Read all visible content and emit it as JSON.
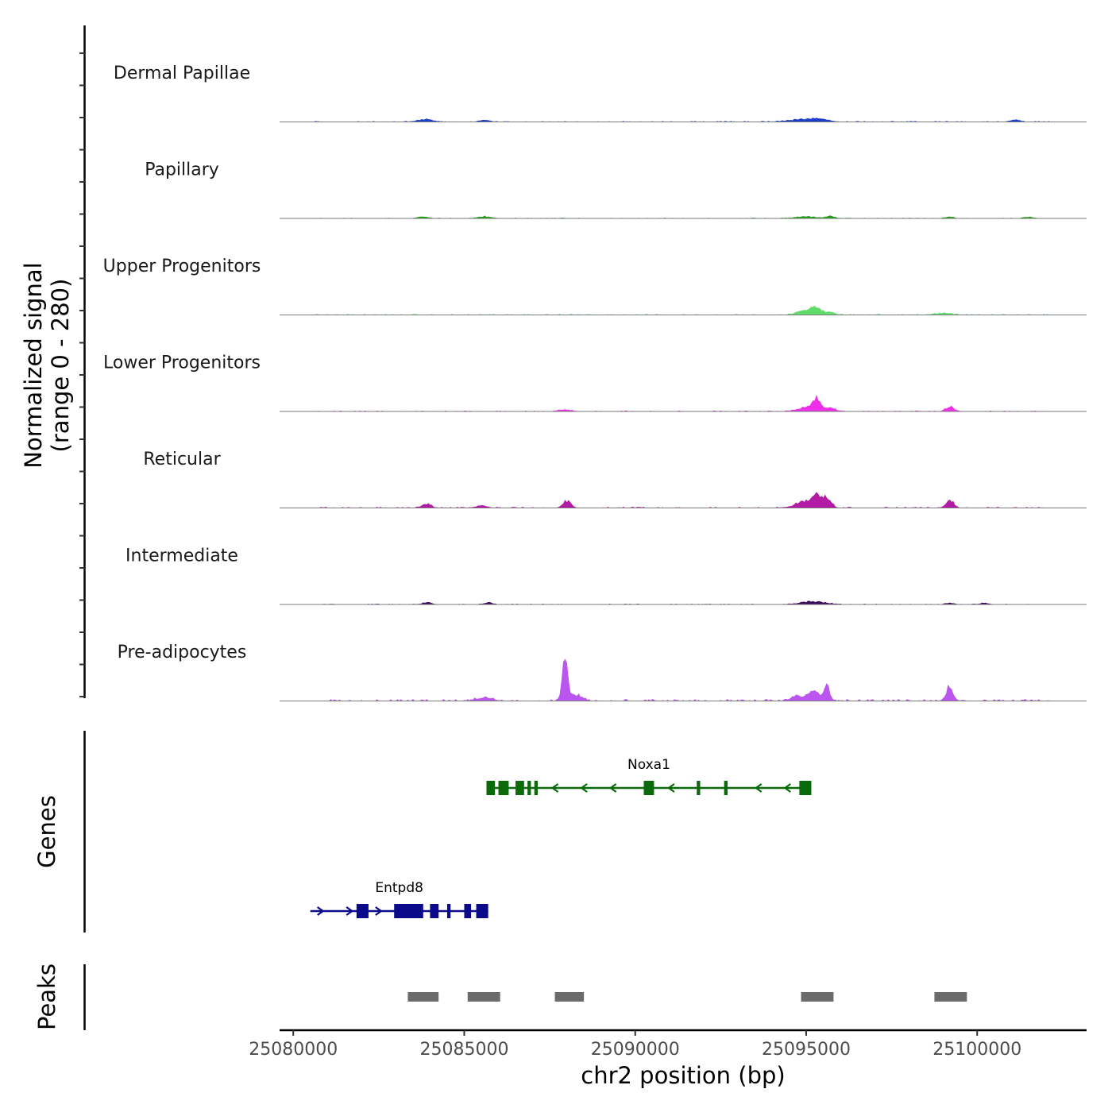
{
  "chart_data": {
    "type": "area",
    "chromosome": "chr2",
    "y_axis_title": "Normalized signal\n(range 0 - 280)",
    "y_range": [
      0,
      280
    ],
    "x_axis_title": "chr2 position (bp)",
    "xlim": [
      25079600,
      25103200
    ],
    "x_ticks": [
      25080000,
      25085000,
      25090000,
      25095000,
      25100000
    ],
    "x_tick_labels": [
      "25080000",
      "25085000",
      "25090000",
      "25095000",
      "25100000"
    ],
    "tracks": [
      {
        "name": "Dermal Papillae",
        "color": "#1a3dcc",
        "baseline_noise": 2,
        "peaks": [
          [
            25083850,
            7,
            220
          ],
          [
            25085600,
            5,
            140
          ],
          [
            25094900,
            7,
            400
          ],
          [
            25095400,
            6,
            250
          ],
          [
            25101100,
            5,
            140
          ]
        ]
      },
      {
        "name": "Papillary",
        "color": "#1f9e12",
        "baseline_noise": 1.5,
        "peaks": [
          [
            25083800,
            4,
            160
          ],
          [
            25085600,
            5,
            180
          ],
          [
            25095000,
            5,
            300
          ],
          [
            25095700,
            6,
            120
          ],
          [
            25099200,
            4,
            120
          ],
          [
            25101500,
            4,
            120
          ]
        ]
      },
      {
        "name": "Upper Progenitors",
        "color": "#5fdc6a",
        "baseline_noise": 2,
        "peaks": [
          [
            25094900,
            11,
            200
          ],
          [
            25095300,
            20,
            160
          ],
          [
            25095700,
            8,
            120
          ],
          [
            25099000,
            5,
            250
          ]
        ]
      },
      {
        "name": "Lower Progenitors",
        "color": "#f02ee8",
        "baseline_noise": 2,
        "peaks": [
          [
            25087950,
            5,
            180
          ],
          [
            25095000,
            12,
            250
          ],
          [
            25095300,
            33,
            110
          ],
          [
            25095700,
            10,
            160
          ],
          [
            25099200,
            14,
            110
          ]
        ]
      },
      {
        "name": "Reticular",
        "color": "#b31aa6",
        "baseline_noise": 2.5,
        "peaks": [
          [
            25083900,
            12,
            120
          ],
          [
            25085500,
            6,
            160
          ],
          [
            25088000,
            20,
            110
          ],
          [
            25095000,
            18,
            300
          ],
          [
            25095300,
            36,
            100
          ],
          [
            25095600,
            28,
            120
          ],
          [
            25099200,
            25,
            110
          ]
        ]
      },
      {
        "name": "Intermediate",
        "color": "#3a0a5a",
        "baseline_noise": 1.5,
        "peaks": [
          [
            25083900,
            6,
            120
          ],
          [
            25085700,
            5,
            120
          ],
          [
            25095200,
            8,
            350
          ],
          [
            25099200,
            4,
            120
          ],
          [
            25100200,
            4,
            120
          ]
        ]
      },
      {
        "name": "Pre-adipocytes",
        "color": "#bb55f0",
        "baseline_noise": 5,
        "peaks": [
          [
            25085600,
            10,
            200
          ],
          [
            25087950,
            108,
            85
          ],
          [
            25088300,
            18,
            150
          ],
          [
            25094700,
            14,
            150
          ],
          [
            25095200,
            30,
            160
          ],
          [
            25095600,
            42,
            90
          ],
          [
            25099200,
            40,
            100
          ]
        ]
      }
    ],
    "genes": [
      {
        "name": "Noxa1",
        "color": "#0a6a0a",
        "strand": "-",
        "start": 25085650,
        "end": 25095150,
        "exons": [
          [
            25085650,
            25085900
          ],
          [
            25086000,
            25086300
          ],
          [
            25086500,
            25086750
          ],
          [
            25086850,
            25086950
          ],
          [
            25087050,
            25087150
          ],
          [
            25090250,
            25090550
          ],
          [
            25091800,
            25091900
          ],
          [
            25092600,
            25092700
          ],
          [
            25094800,
            25095150
          ]
        ]
      },
      {
        "name": "Entpd8",
        "color": "#0a0a8a",
        "strand": "+",
        "start": 25080500,
        "end": 25085700,
        "exons": [
          [
            25081850,
            25082200
          ],
          [
            25082950,
            25083800
          ],
          [
            25084000,
            25084250
          ],
          [
            25084500,
            25084600
          ],
          [
            25085000,
            25085200
          ],
          [
            25085350,
            25085700
          ]
        ]
      }
    ],
    "peaks_track": {
      "name": "Peaks",
      "color": "#6b6b6b",
      "regions": [
        [
          25083350,
          25084250
        ],
        [
          25085100,
          25086050
        ],
        [
          25087650,
          25088500
        ],
        [
          25094850,
          25095800
        ],
        [
          25098750,
          25099700
        ]
      ]
    },
    "panel_titles": {
      "genes": "Genes",
      "peaks": "Peaks"
    }
  }
}
